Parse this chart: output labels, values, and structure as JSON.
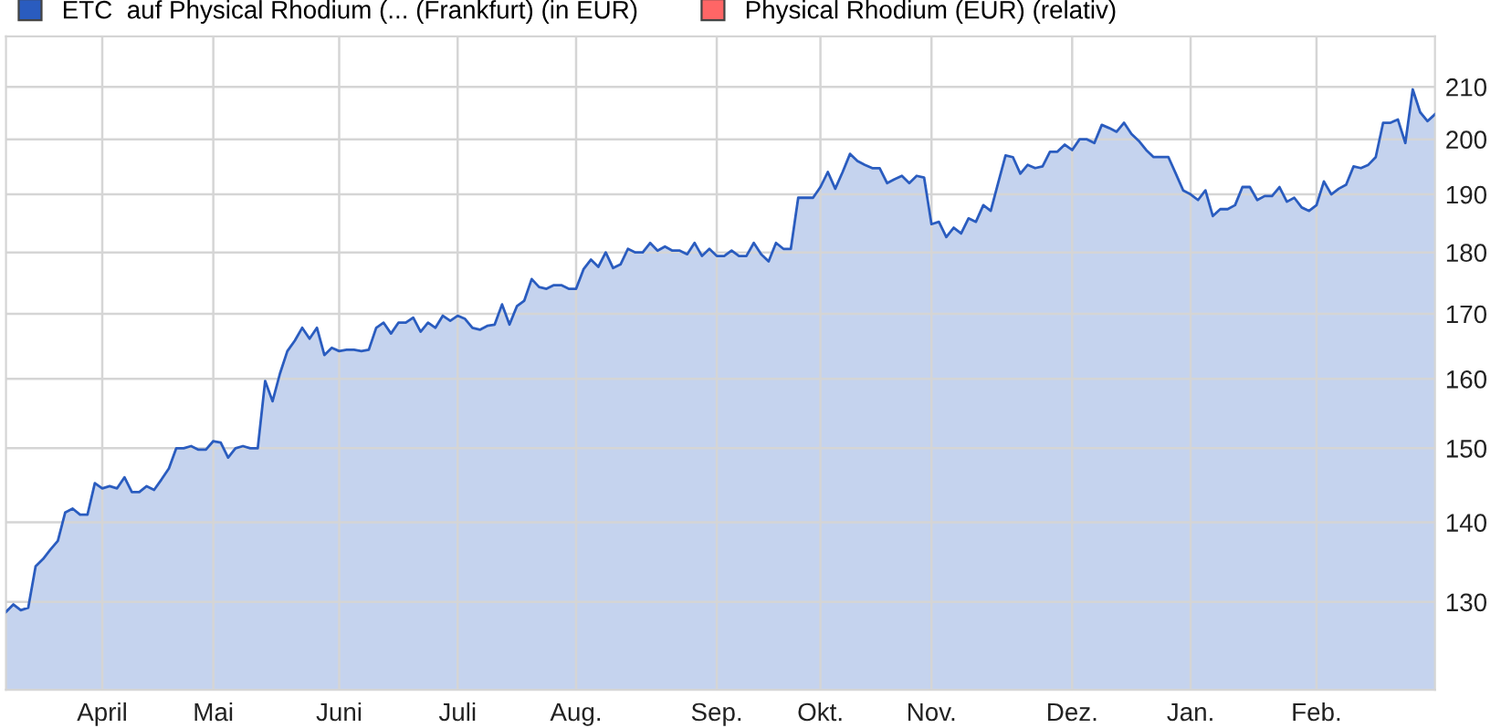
{
  "chart_data": {
    "type": "area",
    "log": "y",
    "legend": "top",
    "grid": true,
    "ylim": [
      119.8,
      220.1
    ],
    "yticks": [
      130,
      140,
      150,
      160,
      170,
      180,
      190,
      200,
      210
    ],
    "categories": [
      null,
      null,
      null,
      null,
      null,
      null,
      null,
      null,
      null,
      null,
      null,
      null,
      null,
      "April",
      null,
      null,
      null,
      null,
      null,
      null,
      null,
      null,
      null,
      null,
      null,
      null,
      null,
      null,
      "Mai",
      null,
      null,
      null,
      null,
      null,
      null,
      null,
      null,
      null,
      null,
      null,
      null,
      null,
      null,
      null,
      null,
      "Juni",
      null,
      null,
      null,
      null,
      null,
      null,
      null,
      null,
      null,
      null,
      null,
      null,
      null,
      null,
      null,
      "Juli",
      null,
      null,
      null,
      null,
      null,
      null,
      null,
      null,
      null,
      null,
      null,
      null,
      null,
      null,
      null,
      "Aug.",
      null,
      null,
      null,
      null,
      null,
      null,
      null,
      null,
      null,
      null,
      null,
      null,
      null,
      null,
      null,
      null,
      null,
      null,
      "Sep.",
      null,
      null,
      null,
      null,
      null,
      null,
      null,
      null,
      null,
      null,
      null,
      null,
      null,
      "Okt.",
      null,
      null,
      null,
      null,
      null,
      null,
      null,
      null,
      null,
      null,
      null,
      null,
      null,
      null,
      "Nov.",
      null,
      null,
      null,
      null,
      null,
      null,
      null,
      null,
      null,
      null,
      null,
      null,
      null,
      null,
      null,
      null,
      null,
      null,
      "Dez.",
      null,
      null,
      null,
      null,
      null,
      null,
      null,
      null,
      null,
      null,
      null,
      null,
      null,
      null,
      null,
      "Jan.",
      null,
      null,
      null,
      null,
      null,
      null,
      null,
      null,
      null,
      null,
      null,
      null,
      null,
      null,
      null,
      null,
      "Feb.",
      null,
      null,
      null,
      null,
      null,
      null,
      null,
      null,
      null,
      null,
      null,
      null,
      null,
      null,
      null,
      null
    ],
    "series": [
      {
        "name": "ETC  auf Physical Rhodium (... (Frankfurt) (in EUR)",
        "color": "#2a5cbf",
        "values": [
          128.8,
          129.7,
          129,
          129.3,
          134.4,
          135.3,
          136.5,
          137.6,
          141.3,
          141.8,
          141,
          141,
          145.2,
          144.5,
          144.8,
          144.5,
          146,
          144,
          144,
          144.8,
          144.3,
          145.7,
          147.2,
          150,
          150,
          150.3,
          149.8,
          149.8,
          151,
          150.8,
          148.7,
          150,
          150.3,
          150,
          150,
          159.7,
          156.7,
          160.8,
          164.2,
          165.8,
          167.8,
          166.1,
          167.8,
          163.6,
          164.7,
          164.2,
          164.4,
          164.4,
          164.2,
          164.4,
          167.8,
          168.6,
          166.9,
          168.6,
          168.6,
          169.4,
          167.2,
          168.6,
          167.8,
          169.7,
          168.9,
          169.7,
          169.2,
          167.8,
          167.5,
          168.1,
          168.3,
          171.5,
          168.3,
          171.2,
          172.1,
          175.6,
          174.3,
          174,
          174.6,
          174.6,
          174,
          174,
          177.2,
          178.8,
          177.6,
          180,
          177.4,
          178,
          180.6,
          180,
          180,
          181.6,
          180.3,
          181,
          180.3,
          180.3,
          179.7,
          181.6,
          179.4,
          180.6,
          179.4,
          179.4,
          180.3,
          179.4,
          179.4,
          181.6,
          179.7,
          178.5,
          181.6,
          180.6,
          180.6,
          189.4,
          189.4,
          189.4,
          191.3,
          194,
          191,
          194,
          197.3,
          196,
          195.3,
          194.7,
          194.7,
          192,
          192.7,
          193.3,
          192,
          193.3,
          193,
          184.8,
          185.2,
          182.6,
          184.2,
          183.2,
          185.8,
          185.2,
          188.1,
          187.1,
          192,
          197,
          196.7,
          193.7,
          195.3,
          194.7,
          195,
          197.7,
          197.7,
          199,
          198,
          200,
          200,
          199.3,
          202.7,
          202.1,
          201.4,
          203.1,
          201,
          199.7,
          198,
          196.7,
          196.7,
          196.7,
          193.7,
          190.7,
          190,
          189,
          190.7,
          186.2,
          187.4,
          187.4,
          188.1,
          191.3,
          191.3,
          189,
          189.7,
          189.7,
          191.3,
          188.7,
          189.4,
          187.7,
          187.1,
          188.1,
          192.3,
          190,
          191,
          191.7,
          195,
          194.7,
          195.3,
          196.7,
          203.1,
          203.1,
          203.7,
          199.3,
          209.5,
          205.1,
          203.4,
          204.7
        ]
      },
      {
        "name": "Physical Rhodium (EUR) (relativ)",
        "color": "#ff6666",
        "values": [
          null,
          null,
          null,
          null,
          null,
          null,
          null,
          null,
          null,
          null,
          null,
          null,
          null,
          null,
          null,
          null,
          null,
          null,
          null,
          null,
          null,
          null,
          null,
          null,
          null,
          null,
          null,
          null,
          null,
          null,
          null,
          null,
          null,
          null,
          null,
          null,
          null,
          null,
          null,
          null,
          null,
          null,
          null,
          null,
          null,
          null,
          null,
          null,
          null,
          null,
          null,
          null,
          null,
          null,
          null,
          null,
          null,
          null,
          null,
          null,
          null,
          null,
          null,
          null,
          null,
          null,
          null,
          null,
          null,
          null,
          null,
          null,
          null,
          null,
          null,
          null,
          null,
          null,
          null,
          null,
          null,
          null,
          null,
          null,
          null,
          null,
          null,
          null,
          null,
          null,
          null,
          null,
          null,
          null,
          null,
          null,
          null,
          null,
          null,
          null,
          null,
          null,
          null,
          null,
          null,
          null,
          null,
          null,
          null,
          null,
          null,
          null,
          null,
          null,
          null,
          null,
          null,
          null,
          null,
          null,
          null,
          null,
          null,
          null,
          null,
          null,
          null,
          null,
          null,
          null,
          null,
          null,
          null,
          null,
          null,
          null,
          null,
          null,
          null,
          null,
          null,
          null,
          null,
          null,
          null,
          null,
          null,
          null,
          null,
          null,
          null,
          null,
          null,
          null,
          null,
          null,
          null,
          null,
          null,
          null,
          null,
          null,
          null,
          null,
          null,
          null,
          null,
          null,
          null,
          null,
          null,
          null,
          null,
          null,
          null,
          null,
          null,
          null,
          null,
          null,
          null,
          null,
          null,
          null,
          null,
          null,
          null,
          null,
          null,
          null,
          null,
          null,
          null,
          null
        ]
      }
    ]
  }
}
